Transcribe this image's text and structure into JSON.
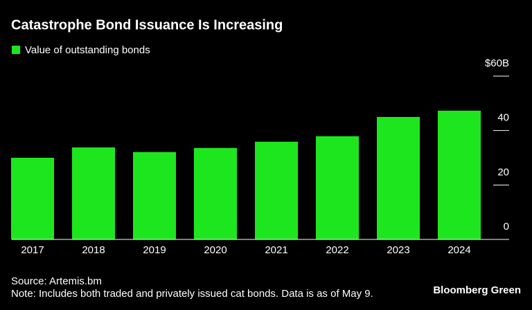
{
  "chart_data": {
    "type": "bar",
    "title": "Catastrophe Bond Issuance Is Increasing",
    "categories": [
      "2017",
      "2018",
      "2019",
      "2020",
      "2021",
      "2022",
      "2023",
      "2024"
    ],
    "series": [
      {
        "name": "Value of outstanding bonds",
        "color": "#1ee61e",
        "values": [
          30.0,
          33.8,
          32.1,
          33.6,
          35.9,
          37.9,
          45.0,
          47.3
        ]
      }
    ],
    "ylim": [
      0,
      60
    ],
    "yticks": [
      0,
      20,
      40,
      {
        "value": 60,
        "label": "$60B"
      }
    ],
    "source": "Source: Artemis.bm",
    "note": "Note: Includes both traded and privately issued cat bonds. Data is as of May 9.",
    "brand": "Bloomberg Green"
  }
}
